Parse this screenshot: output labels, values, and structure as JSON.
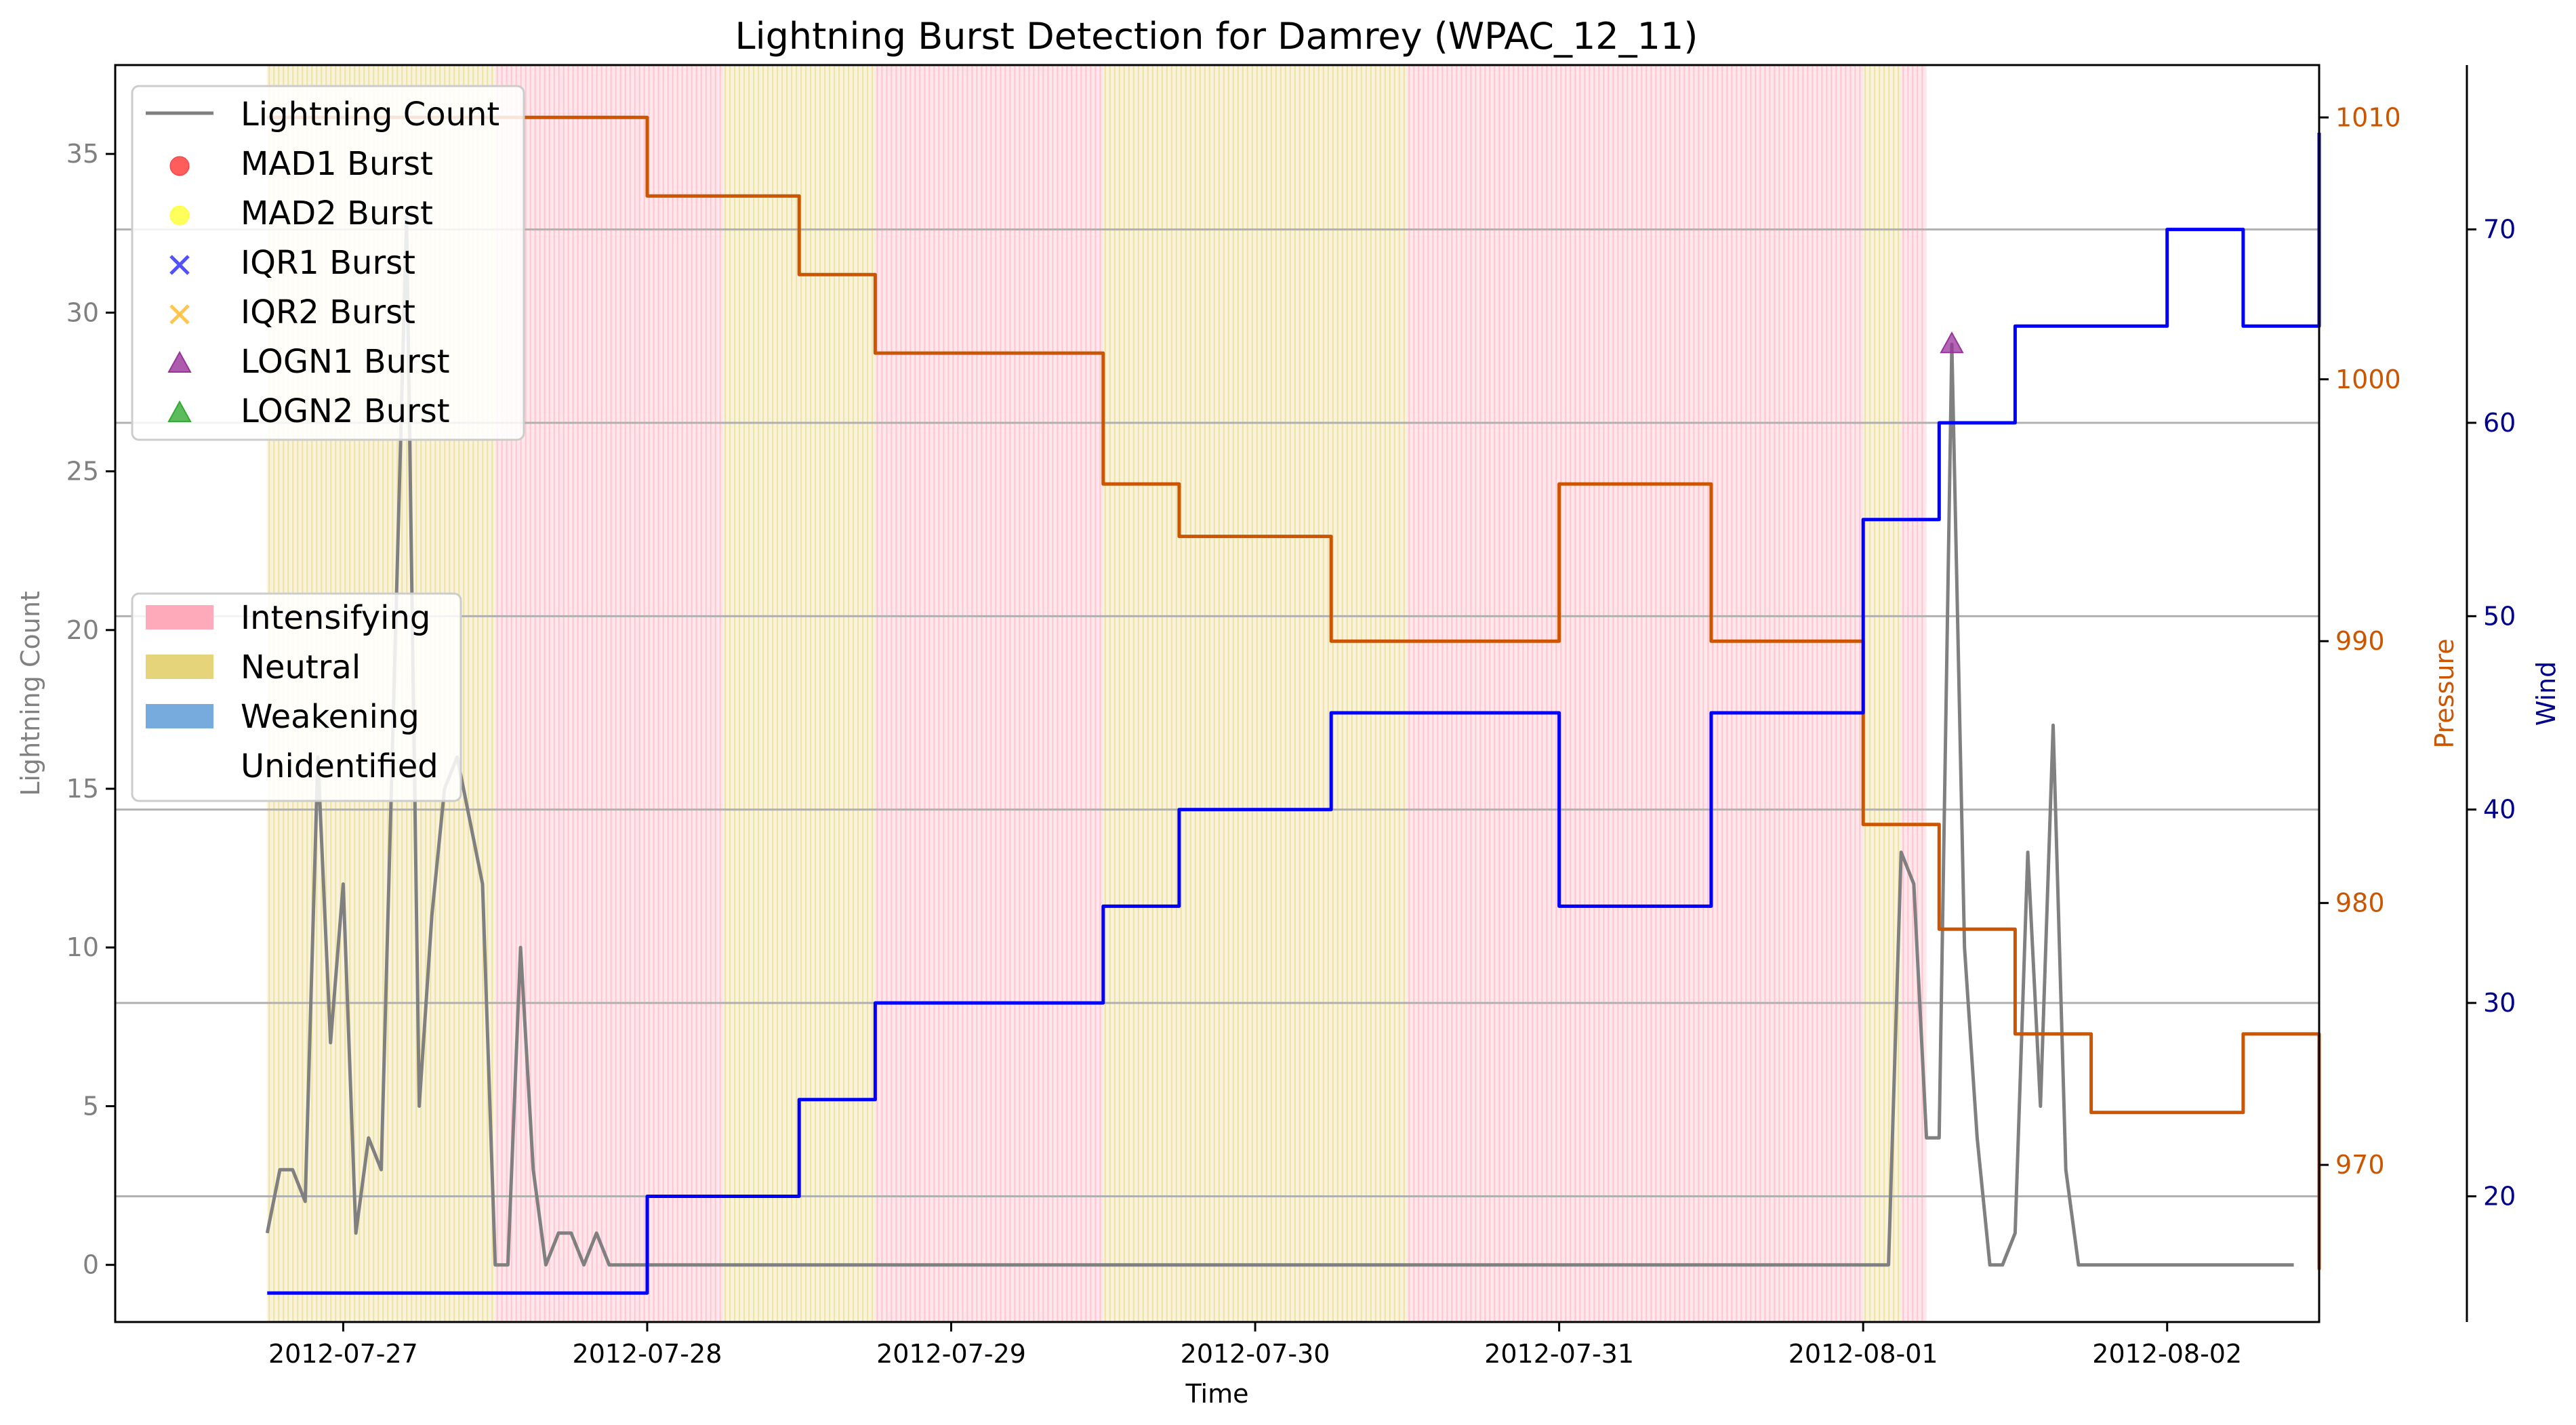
{
  "chart_data": {
    "type": "line",
    "title": "Lightning Burst Detection for Damrey (WPAC_12_11)",
    "xlabel": "Time",
    "x_tick_labels": [
      "2012-07-27",
      "2012-07-28",
      "2012-07-29",
      "2012-07-30",
      "2012-07-31",
      "2012-08-01",
      "2012-08-02"
    ],
    "x_range": [
      "2012-07-26 06:00",
      "2012-08-02 12:00"
    ],
    "axes": {
      "left": {
        "label": "Lightning Count",
        "color": "#808080",
        "ylim": [
          -1.8,
          37.8
        ],
        "ticks": [
          0,
          5,
          10,
          15,
          20,
          25,
          30,
          35
        ]
      },
      "right1": {
        "label": "Pressure",
        "color": "#cc5500",
        "ylim": [
          964,
          1012
        ],
        "ticks": [
          970,
          980,
          990,
          1000,
          1010
        ]
      },
      "right2": {
        "label": "Wind",
        "color": "#00008b",
        "ylim": [
          13.5,
          78.5
        ],
        "ticks": [
          20,
          30,
          40,
          50,
          60,
          70
        ]
      }
    },
    "grid": "horizontal lines at wind ticks",
    "phases": {
      "legend_title": "",
      "categories": [
        {
          "name": "Intensifying",
          "color": "#ffaabb"
        },
        {
          "name": "Neutral",
          "color": "#e6d47a"
        },
        {
          "name": "Weakening",
          "color": "#77aadd"
        },
        {
          "name": "Unidentified",
          "color": "#ffffff"
        }
      ],
      "spans": [
        {
          "start": "2012-07-26 18:00",
          "end": "2012-07-27 12:00",
          "phase": "Neutral"
        },
        {
          "start": "2012-07-27 12:00",
          "end": "2012-07-28 06:00",
          "phase": "Intensifying"
        },
        {
          "start": "2012-07-28 06:00",
          "end": "2012-07-28 18:00",
          "phase": "Neutral"
        },
        {
          "start": "2012-07-28 18:00",
          "end": "2012-07-29 12:00",
          "phase": "Intensifying"
        },
        {
          "start": "2012-07-29 12:00",
          "end": "2012-07-30 12:00",
          "phase": "Neutral"
        },
        {
          "start": "2012-07-30 12:00",
          "end": "2012-08-01 00:00",
          "phase": "Intensifying"
        },
        {
          "start": "2012-08-01 00:00",
          "end": "2012-08-01 03:00",
          "phase": "Neutral"
        },
        {
          "start": "2012-08-01 03:00",
          "end": "2012-08-01 05:00",
          "phase": "Intensifying"
        }
      ]
    },
    "series": [
      {
        "name": "Lightning Count",
        "axis": "left",
        "color": "#808080",
        "x": [
          "2012-07-26 18:00",
          "2012-07-26 19:00",
          "2012-07-26 20:00",
          "2012-07-26 21:00",
          "2012-07-26 22:00",
          "2012-07-26 23:00",
          "2012-07-27 00:00",
          "2012-07-27 01:00",
          "2012-07-27 02:00",
          "2012-07-27 03:00",
          "2012-07-27 04:00",
          "2012-07-27 05:00",
          "2012-07-27 06:00",
          "2012-07-27 07:00",
          "2012-07-27 08:00",
          "2012-07-27 09:00",
          "2012-07-27 10:00",
          "2012-07-27 11:00",
          "2012-07-27 12:00",
          "2012-07-27 13:00",
          "2012-07-27 14:00",
          "2012-07-27 15:00",
          "2012-07-27 16:00",
          "2012-07-27 17:00",
          "2012-07-27 18:00",
          "2012-07-27 19:00",
          "2012-07-27 20:00",
          "2012-07-27 21:00",
          "2012-07-28 00:00",
          "2012-07-28 12:00",
          "2012-07-29 00:00",
          "2012-07-29 01:00",
          "2012-07-29 02:00",
          "2012-07-29 03:00",
          "2012-07-29 04:00",
          "2012-07-29 05:00",
          "2012-07-29 06:00",
          "2012-07-29 07:00",
          "2012-07-29 08:00",
          "2012-07-29 09:00",
          "2012-07-29 10:00",
          "2012-07-29 11:00",
          "2012-07-29 12:00",
          "2012-07-30 00:00",
          "2012-07-30 08:00",
          "2012-07-30 09:00",
          "2012-07-30 10:00",
          "2012-07-30 18:00",
          "2012-07-30 19:00",
          "2012-07-30 20:00",
          "2012-07-31 12:00",
          "2012-08-01 00:00",
          "2012-08-01 02:00",
          "2012-08-01 03:00",
          "2012-08-01 04:00",
          "2012-08-01 05:00",
          "2012-08-01 06:00",
          "2012-08-01 07:00",
          "2012-08-01 08:00",
          "2012-08-01 09:00",
          "2012-08-01 10:00",
          "2012-08-01 11:00",
          "2012-08-01 12:00",
          "2012-08-01 13:00",
          "2012-08-01 14:00",
          "2012-08-01 15:00",
          "2012-08-01 16:00",
          "2012-08-01 17:00",
          "2012-08-01 18:00",
          "2012-08-01 22:00",
          "2012-08-01 23:00",
          "2012-08-02 00:00",
          "2012-08-02 04:00",
          "2012-08-02 05:00",
          "2012-08-02 06:00",
          "2012-08-02 07:00",
          "2012-08-02 08:00",
          "2012-08-02 09:00",
          "2012-08-02 10:00"
        ],
        "values": [
          1,
          3,
          3,
          2,
          16,
          7,
          12,
          1,
          4,
          3,
          18,
          33,
          5,
          11,
          15,
          16,
          14,
          12,
          0,
          0,
          10,
          3,
          0,
          1,
          1,
          0,
          1,
          0,
          0,
          0,
          0,
          0,
          0,
          0,
          0,
          0,
          0,
          0,
          0,
          0,
          0,
          0,
          0,
          0,
          0,
          0,
          0,
          0,
          0,
          0,
          0,
          0,
          0,
          13,
          12,
          4,
          4,
          29,
          10,
          4,
          0,
          0,
          1,
          13,
          5,
          17,
          3,
          0,
          0,
          0,
          0,
          0,
          0,
          0,
          0,
          0,
          0,
          0,
          0
        ]
      },
      {
        "name": "Pressure",
        "axis": "right1",
        "color": "#cc5500",
        "x": [
          "2012-07-26 18:00",
          "2012-07-27 06:00",
          "2012-07-28 00:00",
          "2012-07-28 06:00",
          "2012-07-28 12:00",
          "2012-07-28 18:00",
          "2012-07-29 06:00",
          "2012-07-29 12:00",
          "2012-07-29 18:00",
          "2012-07-30 00:00",
          "2012-07-30 06:00",
          "2012-07-30 12:00",
          "2012-07-31 00:00",
          "2012-07-31 06:00",
          "2012-07-31 12:00",
          "2012-07-31 18:00",
          "2012-08-01 00:00",
          "2012-08-01 06:00",
          "2012-08-01 12:00",
          "2012-08-01 18:00",
          "2012-08-02 00:00",
          "2012-08-02 06:00",
          "2012-08-02 12:00"
        ],
        "values": [
          1010,
          1010,
          1007,
          1007,
          1004,
          1001,
          1001,
          996,
          994,
          994,
          990,
          990,
          996,
          996,
          990,
          990,
          983,
          979,
          975,
          972,
          972,
          975,
          966
        ]
      },
      {
        "name": "Wind",
        "axis": "right2",
        "color": "#0000ff",
        "x": [
          "2012-07-26 18:00",
          "2012-07-27 06:00",
          "2012-07-28 00:00",
          "2012-07-28 06:00",
          "2012-07-28 12:00",
          "2012-07-28 18:00",
          "2012-07-29 06:00",
          "2012-07-29 12:00",
          "2012-07-29 18:00",
          "2012-07-30 00:00",
          "2012-07-30 06:00",
          "2012-07-30 12:00",
          "2012-07-31 00:00",
          "2012-07-31 06:00",
          "2012-07-31 12:00",
          "2012-07-31 18:00",
          "2012-08-01 00:00",
          "2012-08-01 06:00",
          "2012-08-01 12:00",
          "2012-08-01 18:00",
          "2012-08-02 00:00",
          "2012-08-02 06:00",
          "2012-08-02 12:00"
        ],
        "values": [
          15,
          15,
          20,
          20,
          25,
          30,
          30,
          35,
          40,
          40,
          45,
          45,
          35,
          35,
          45,
          45,
          55,
          60,
          65,
          65,
          70,
          65,
          75
        ]
      }
    ],
    "bursts": [
      {
        "name": "LOGN1 Burst",
        "x": "2012-08-01 07:00",
        "y": 29
      }
    ],
    "legend_markers": [
      {
        "name": "Lightning Count",
        "kind": "line",
        "color": "#808080"
      },
      {
        "name": "MAD1 Burst",
        "kind": "circle",
        "color": "#ff3333"
      },
      {
        "name": "MAD2 Burst",
        "kind": "circle",
        "color": "#ffff33"
      },
      {
        "name": "IQR1 Burst",
        "kind": "x",
        "color": "#3333ff"
      },
      {
        "name": "IQR2 Burst",
        "kind": "x",
        "color": "#ffbb33"
      },
      {
        "name": "LOGN1 Burst",
        "kind": "triangle",
        "color": "#993399"
      },
      {
        "name": "LOGN2 Burst",
        "kind": "triangle",
        "color": "#33aa33"
      }
    ]
  }
}
